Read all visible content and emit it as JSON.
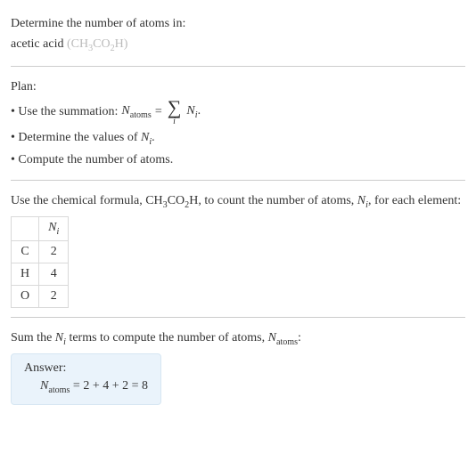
{
  "prompt": {
    "line1": "Determine the number of atoms in:",
    "line2a": "acetic acid ",
    "line2b": "(CH",
    "line2c": "3",
    "line2d": "CO",
    "line2e": "2",
    "line2f": "H)"
  },
  "plan": {
    "heading": "Plan:",
    "bullet1_prefix": "• Use the summation: ",
    "eq_lhs_N": "N",
    "eq_lhs_sub": "atoms",
    "eq_eq": " = ",
    "eq_rhs_N": "N",
    "eq_rhs_sub": "i",
    "eq_period": ".",
    "sigma": "∑",
    "sigma_idx": "i",
    "bullet2_a": "• Determine the values of ",
    "bullet2_N": "N",
    "bullet2_sub": "i",
    "bullet2_b": ".",
    "bullet3": "• Compute the number of atoms."
  },
  "count": {
    "text_a": "Use the chemical formula, CH",
    "f_s1": "3",
    "text_b": "CO",
    "f_s2": "2",
    "text_c": "H, to count the number of atoms, ",
    "ni_N": "N",
    "ni_sub": "i",
    "text_d": ", for each element:"
  },
  "table": {
    "header_blank": "",
    "header_Ni_N": "N",
    "header_Ni_sub": "i",
    "rows": [
      {
        "el": "C",
        "n": "2"
      },
      {
        "el": "H",
        "n": "4"
      },
      {
        "el": "O",
        "n": "2"
      }
    ]
  },
  "sum": {
    "text_a": "Sum the ",
    "ni_N": "N",
    "ni_sub": "i",
    "text_b": " terms to compute the number of atoms, ",
    "na_N": "N",
    "na_sub": "atoms",
    "text_c": ":"
  },
  "answer": {
    "label": "Answer:",
    "N": "N",
    "N_sub": "atoms",
    "expr": " = 2 + 4 + 2 = 8"
  },
  "style": {
    "background": "#ffffff",
    "text_color": "#333333",
    "muted_color": "#bbbbbb",
    "divider_color": "#cccccc",
    "table_border": "#d9d9d9",
    "answer_bg": "#eaf3fb",
    "answer_border": "#d6e6f2",
    "base_fontsize": 14
  }
}
